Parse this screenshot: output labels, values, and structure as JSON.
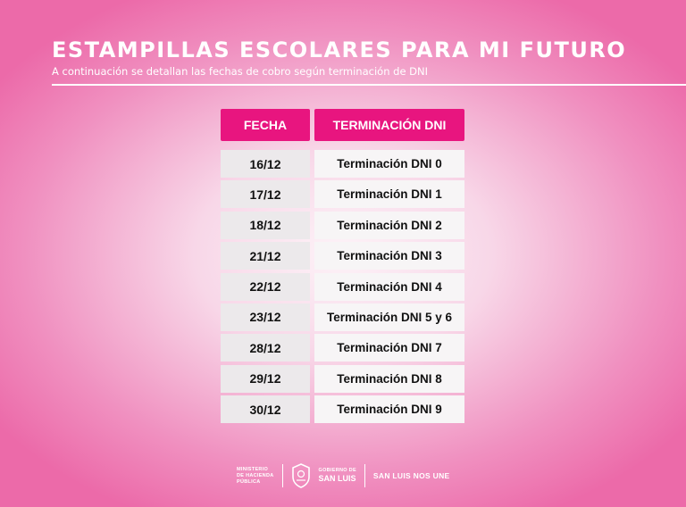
{
  "header": {
    "title": "ESTAMPILLAS ESCOLARES PARA MI FUTURO",
    "subtitle": "A continuación se detallan las fechas de cobro según terminación de DNI"
  },
  "table": {
    "headers": {
      "fecha": "FECHA",
      "terminacion": "TERMINACIÓN DNI"
    },
    "rows": [
      {
        "fecha": "16/12",
        "terminacion": "Terminación DNI 0"
      },
      {
        "fecha": "17/12",
        "terminacion": "Terminación DNI 1"
      },
      {
        "fecha": "18/12",
        "terminacion": "Terminación DNI 2"
      },
      {
        "fecha": "21/12",
        "terminacion": "Terminación DNI 3"
      },
      {
        "fecha": "22/12",
        "terminacion": "Terminación DNI 4"
      },
      {
        "fecha": "23/12",
        "terminacion": "Terminación DNI 5 y 6"
      },
      {
        "fecha": "28/12",
        "terminacion": "Terminación DNI 7"
      },
      {
        "fecha": "29/12",
        "terminacion": "Terminación DNI 8"
      },
      {
        "fecha": "30/12",
        "terminacion": "Terminación DNI 9"
      }
    ]
  },
  "footer": {
    "ministerio": "MINISTERIO\nDE HACIENDA\nPÚBLICA",
    "gobierno_small": "GOBIERNO DE",
    "gobierno_big": "SAN LUIS",
    "slogan": "SAN LUIS NOS UNE",
    "shield_icon": "san-luis-shield-icon"
  },
  "colors": {
    "accent": "#e8157f",
    "background_edge": "#ec6aa9",
    "background_center": "#fdf3f8",
    "cell_background": "#f2eef0",
    "text": "#111111"
  }
}
